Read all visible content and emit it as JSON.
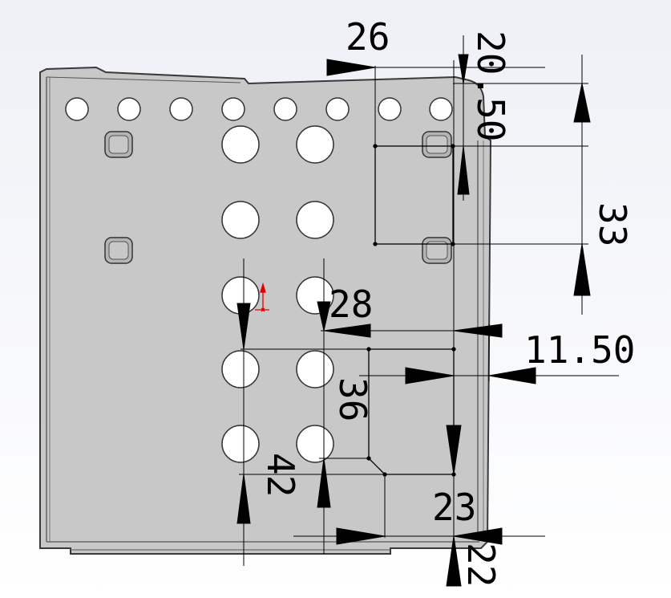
{
  "viewport": {
    "background_top": "#eef0f6",
    "background_bottom": "#ffffff",
    "part_fill": "#c8c8c8",
    "edge_color": "#3a3a3a",
    "dimension_color": "#000000",
    "sketch_color": "#000000",
    "origin_color": "#e00000"
  },
  "dimensions": {
    "d26": "26",
    "d20_50": "20.50",
    "d33": "33",
    "d28": "28",
    "d11_50": "11.50",
    "d36": "36",
    "d42": "42",
    "d23": "23",
    "d22": "22"
  },
  "icons": {
    "origin": "origin-triad-icon"
  }
}
